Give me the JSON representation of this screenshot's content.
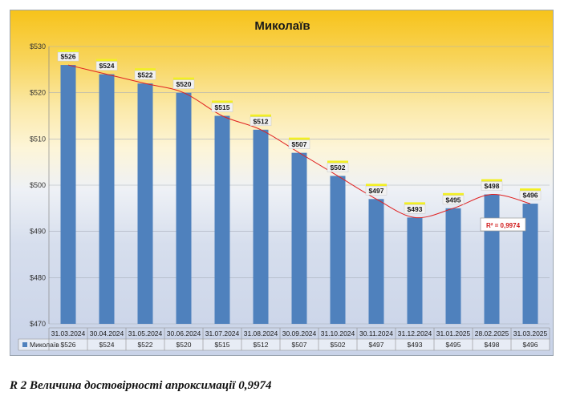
{
  "chart_data": {
    "type": "bar",
    "title": "Миколаїв",
    "categories": [
      "31.03.2024",
      "30.04.2024",
      "31.05.2024",
      "30.06.2024",
      "31.07.2024",
      "31.08.2024",
      "30.09.2024",
      "31.10.2024",
      "30.11.2024",
      "31.12.2024",
      "31.01.2025",
      "28.02.2025",
      "31.03.2025"
    ],
    "series": [
      {
        "name": "Миколаїв",
        "values": [
          526,
          524,
          522,
          520,
          515,
          512,
          507,
          502,
          497,
          493,
          495,
          498,
          496
        ],
        "color": "#4f81bd"
      }
    ],
    "data_labels": [
      "$526",
      "$524",
      "$522",
      "$520",
      "$515",
      "$512",
      "$507",
      "$502",
      "$497",
      "$493",
      "$495",
      "$498",
      "$496"
    ],
    "ylim": [
      470,
      530
    ],
    "yticks": [
      470,
      480,
      490,
      500,
      510,
      520,
      530
    ],
    "ytick_labels": [
      "$470",
      "$480",
      "$490",
      "$500",
      "$510",
      "$520",
      "$530"
    ],
    "trendline": {
      "type": "polynomial",
      "color": "#e02020",
      "r2_label": "R² = 0,9974"
    },
    "data_table": true,
    "grid": true,
    "legend": "in-data-table"
  },
  "caption": "R 2 Величина достовірності апроксимації 0,9974"
}
